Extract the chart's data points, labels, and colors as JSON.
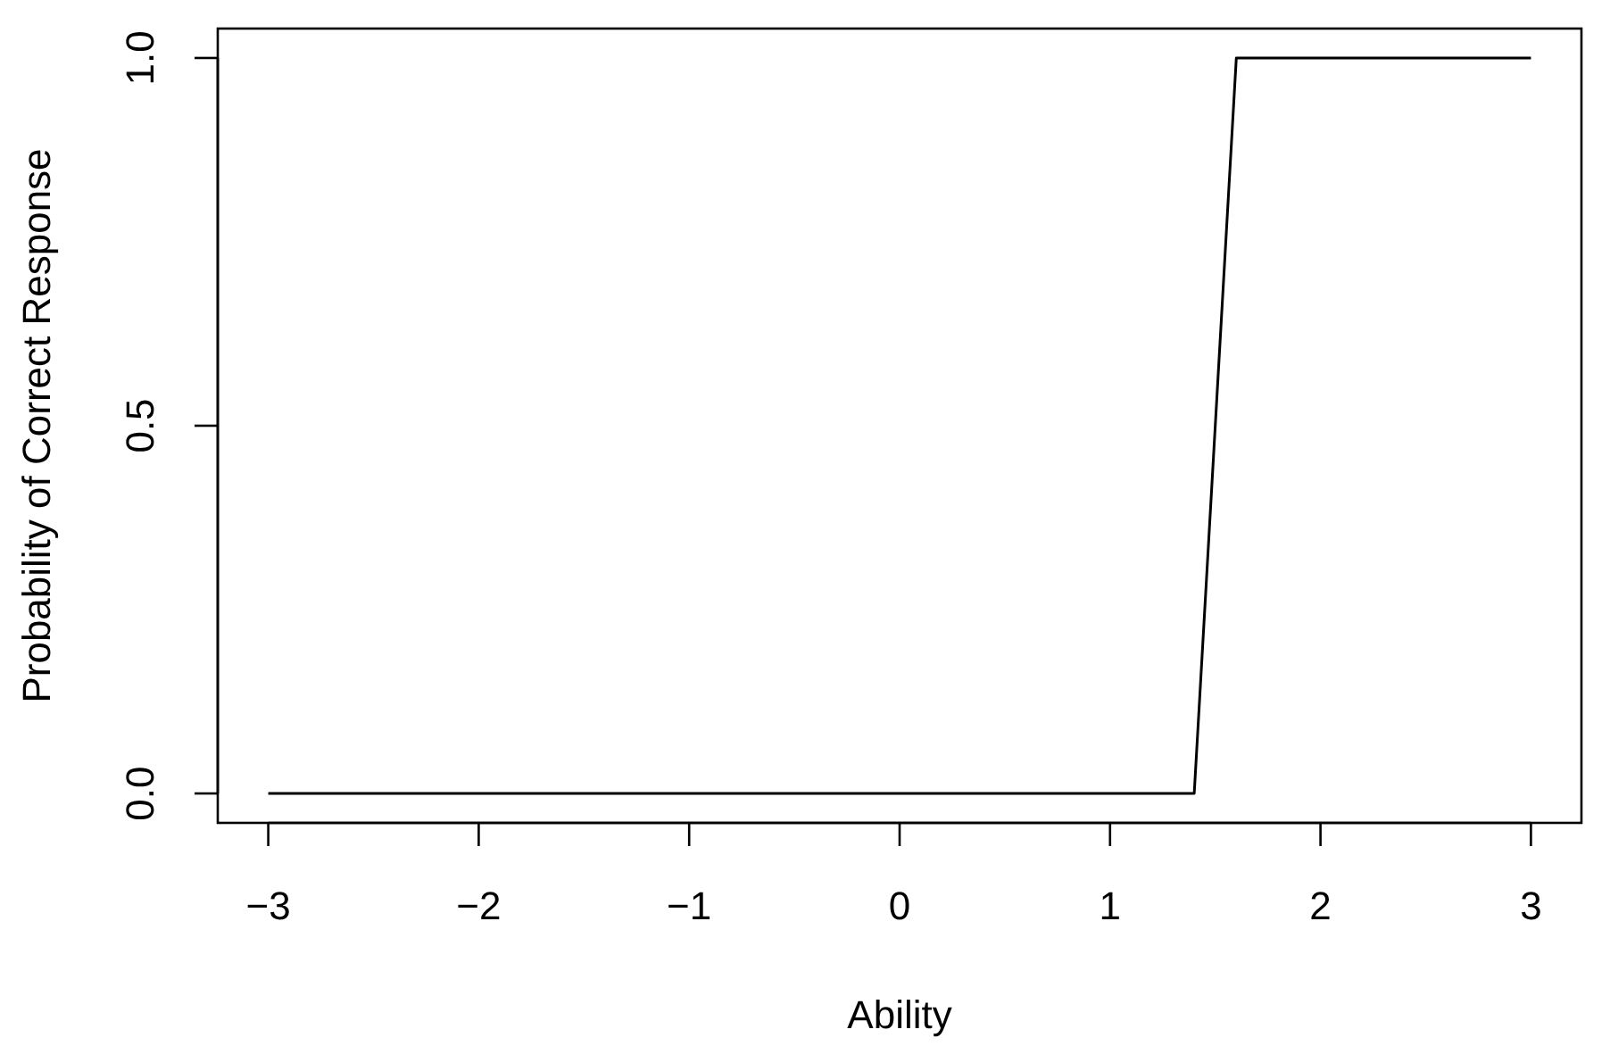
{
  "chart_data": {
    "type": "line",
    "xlabel": "Ability",
    "ylabel": "Probability of Correct Response",
    "x": [
      -3,
      1.4,
      1.6,
      3
    ],
    "values": [
      0,
      0,
      1,
      1
    ],
    "color": "#000000",
    "xlim": [
      -3.24,
      3.24
    ],
    "ylim": [
      -0.04,
      1.04
    ],
    "xticks": [
      {
        "value": -3,
        "label": "−3"
      },
      {
        "value": -2,
        "label": "−2"
      },
      {
        "value": -1,
        "label": "−1"
      },
      0,
      1,
      2,
      3
    ],
    "yticks": [
      {
        "value": 0,
        "label": "0.0"
      },
      {
        "value": 0.5,
        "label": "0.5"
      },
      {
        "value": 1,
        "label": "1.0"
      }
    ]
  }
}
